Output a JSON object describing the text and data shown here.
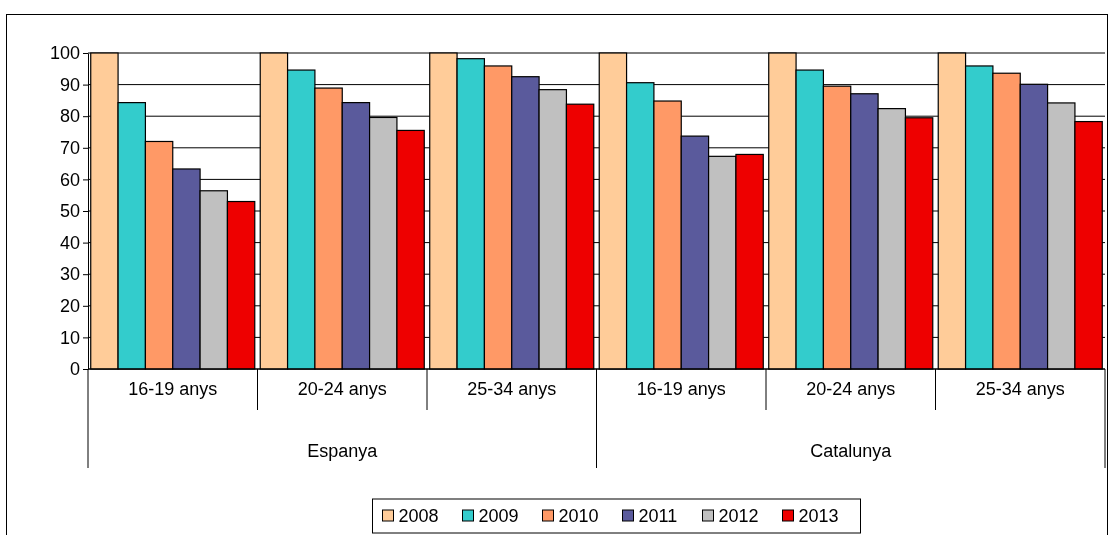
{
  "chart_data": {
    "type": "bar",
    "categories": [
      "16-19 anys",
      "20-24 anys",
      "25-34 anys",
      "16-19 anys",
      "20-24 anys",
      "25-34 anys"
    ],
    "annotations": [
      "Espanya",
      "Catalunya"
    ],
    "series": [
      {
        "name": "2008",
        "color": "#ffcc99",
        "values": [
          100,
          100,
          100,
          100,
          100,
          100
        ]
      },
      {
        "name": "2009",
        "color": "#33cccc",
        "values": [
          84.3,
          94.6,
          98.2,
          90.6,
          94.6,
          95.9
        ]
      },
      {
        "name": "2010",
        "color": "#ff9966",
        "values": [
          72,
          88.9,
          95.9,
          84.8,
          89.5,
          93.6
        ]
      },
      {
        "name": "2011",
        "color": "#5a5a9c",
        "values": [
          63.3,
          84.3,
          92.5,
          73.7,
          87.1,
          90.1
        ]
      },
      {
        "name": "2012",
        "color": "#c0c0c0",
        "values": [
          56.4,
          79.6,
          88.4,
          67.3,
          82.4,
          84.2
        ]
      },
      {
        "name": "2013",
        "color": "#ee0000",
        "values": [
          53,
          75.5,
          83.8,
          67.9,
          79.5,
          78.3
        ]
      }
    ],
    "ylim": [
      0,
      100
    ],
    "yticks": [
      0,
      10,
      20,
      30,
      40,
      50,
      60,
      70,
      80,
      90,
      100
    ],
    "grid": "y",
    "legend": "bottom"
  }
}
